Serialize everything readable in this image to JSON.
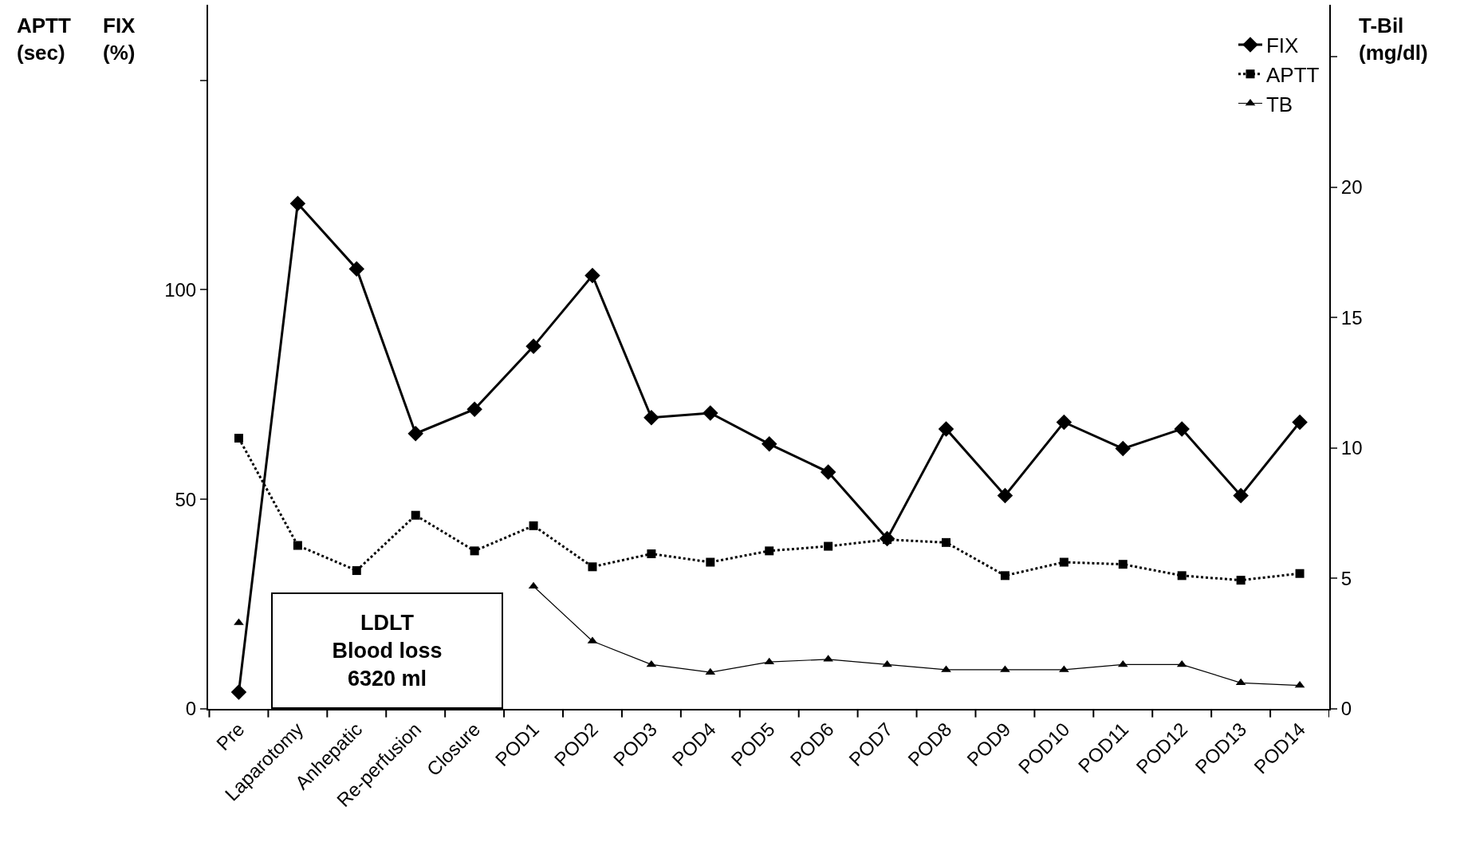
{
  "chart_data": {
    "type": "line",
    "categories": [
      "Pre",
      "Laparotomy",
      "Anhepatic",
      "Re-perfusion",
      "Closure",
      "POD1",
      "POD2",
      "POD3",
      "POD4",
      "POD5",
      "POD6",
      "POD7",
      "POD8",
      "POD9",
      "POD10",
      "POD11",
      "POD12",
      "POD13",
      "POD14"
    ],
    "series": [
      {
        "name": "FIX",
        "color": "#000000",
        "marker": "diamond",
        "line_style": "solid",
        "values": [
          4,
          120.6,
          105,
          65.7,
          71.5,
          86.5,
          103.4,
          69.5,
          70.6,
          63.2,
          56.5,
          40.6,
          66.8,
          50.9,
          68.4,
          62.1,
          66.8,
          50.9,
          68.4
        ]
      },
      {
        "name": "APTT",
        "color": "#000000",
        "marker": "square",
        "line_style": "dotted",
        "values": [
          64.6,
          39,
          33,
          46.2,
          37.7,
          43.7,
          33.9,
          37,
          35,
          37.7,
          38.8,
          40.4,
          39.7,
          31.8,
          35,
          34.5,
          31.8,
          30.7,
          32.3
        ]
      },
      {
        "name": "TB",
        "color": "#000000",
        "marker": "triangle",
        "line_style": "solid",
        "axis": "y2",
        "values": [
          3.3,
          null,
          null,
          null,
          null,
          4.7,
          2.6,
          1.7,
          1.4,
          1.8,
          1.9,
          1.7,
          1.5,
          1.5,
          1.5,
          1.7,
          1.7,
          1.0,
          0.9
        ]
      }
    ],
    "ylabel": "FIX\n(%)",
    "y2label": "T-Bil\n(mg/dl)",
    "annotations": [
      "APTT\n(sec)",
      "LDLT\nBlood loss\n6320 ml"
    ],
    "ylim": [
      0,
      168
    ],
    "yticks": [
      0,
      50,
      100,
      {
        "value": 150,
        "label": null
      }
    ],
    "y2lim": [
      0,
      27
    ],
    "y2ticks": [
      0,
      5,
      10,
      15,
      20,
      {
        "value": 25,
        "label": null
      }
    ],
    "legend": "top right"
  }
}
